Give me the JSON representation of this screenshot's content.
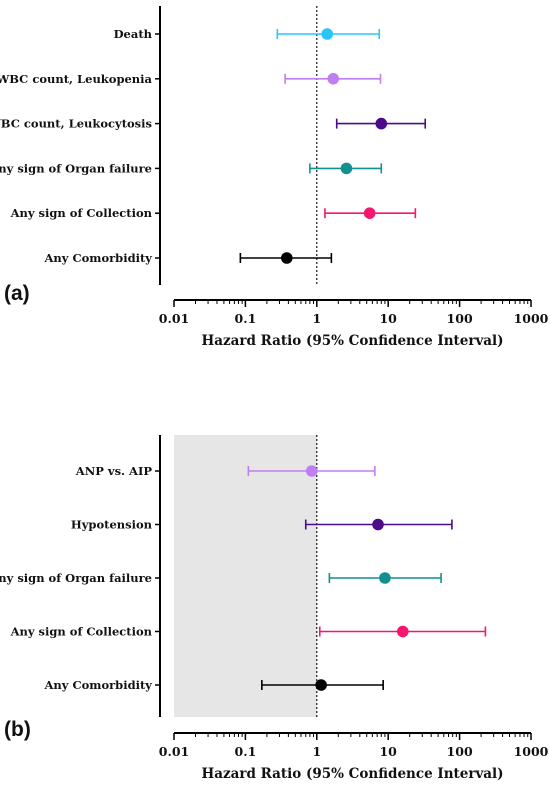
{
  "chart_data": [
    {
      "type": "forest",
      "panel": "(a)",
      "xlabel": "Hazard Ratio (95% Confidence Interval)",
      "xscale": "log",
      "xlim": [
        0.01,
        1000
      ],
      "xticks": [
        "0.01",
        "0.1",
        "1",
        "10",
        "100",
        "1000"
      ],
      "reference_line": 1,
      "shaded_region": null,
      "rows": [
        {
          "label": "Death",
          "hr": 1.4,
          "lower": 0.28,
          "upper": 7.5,
          "color": "#29c5f6"
        },
        {
          "label": "WBC count, Leukopenia",
          "hr": 1.7,
          "lower": 0.36,
          "upper": 7.8,
          "color": "#bf7ff2"
        },
        {
          "label": "WBC count, Leukocytosis",
          "hr": 8.0,
          "lower": 1.9,
          "upper": 33,
          "color": "#4b0a8a"
        },
        {
          "label": "Any sign of Organ failure",
          "hr": 2.6,
          "lower": 0.8,
          "upper": 8.0,
          "color": "#138f8f"
        },
        {
          "label": "Any sign of Collection",
          "hr": 5.5,
          "lower": 1.3,
          "upper": 24,
          "color": "#f5176f"
        },
        {
          "label": "Any Comorbidity",
          "hr": 0.38,
          "lower": 0.085,
          "upper": 1.6,
          "color": "#000000"
        }
      ]
    },
    {
      "type": "forest",
      "panel": "(b)",
      "xlabel": "Hazard Ratio (95% Confidence Interval)",
      "xscale": "log",
      "xlim": [
        0.01,
        1000
      ],
      "xticks": [
        "0.01",
        "0.1",
        "1",
        "10",
        "100",
        "1000"
      ],
      "reference_line": 1,
      "shaded_region": [
        0.01,
        1
      ],
      "rows": [
        {
          "label": "ANP vs. AIP",
          "hr": 0.85,
          "lower": 0.11,
          "upper": 6.5,
          "color": "#bf7ff2"
        },
        {
          "label": "Hypotension",
          "hr": 7.2,
          "lower": 0.7,
          "upper": 78,
          "color": "#4b0a8a"
        },
        {
          "label": "Any sign of Organ failure",
          "hr": 9.0,
          "lower": 1.5,
          "upper": 55,
          "color": "#138f8f"
        },
        {
          "label": "Any sign of Collection",
          "hr": 16,
          "lower": 1.1,
          "upper": 230,
          "color": "#f5176f"
        },
        {
          "label": "Any Comorbidity",
          "hr": 1.15,
          "lower": 0.17,
          "upper": 8.5,
          "color": "#000000"
        }
      ]
    }
  ]
}
